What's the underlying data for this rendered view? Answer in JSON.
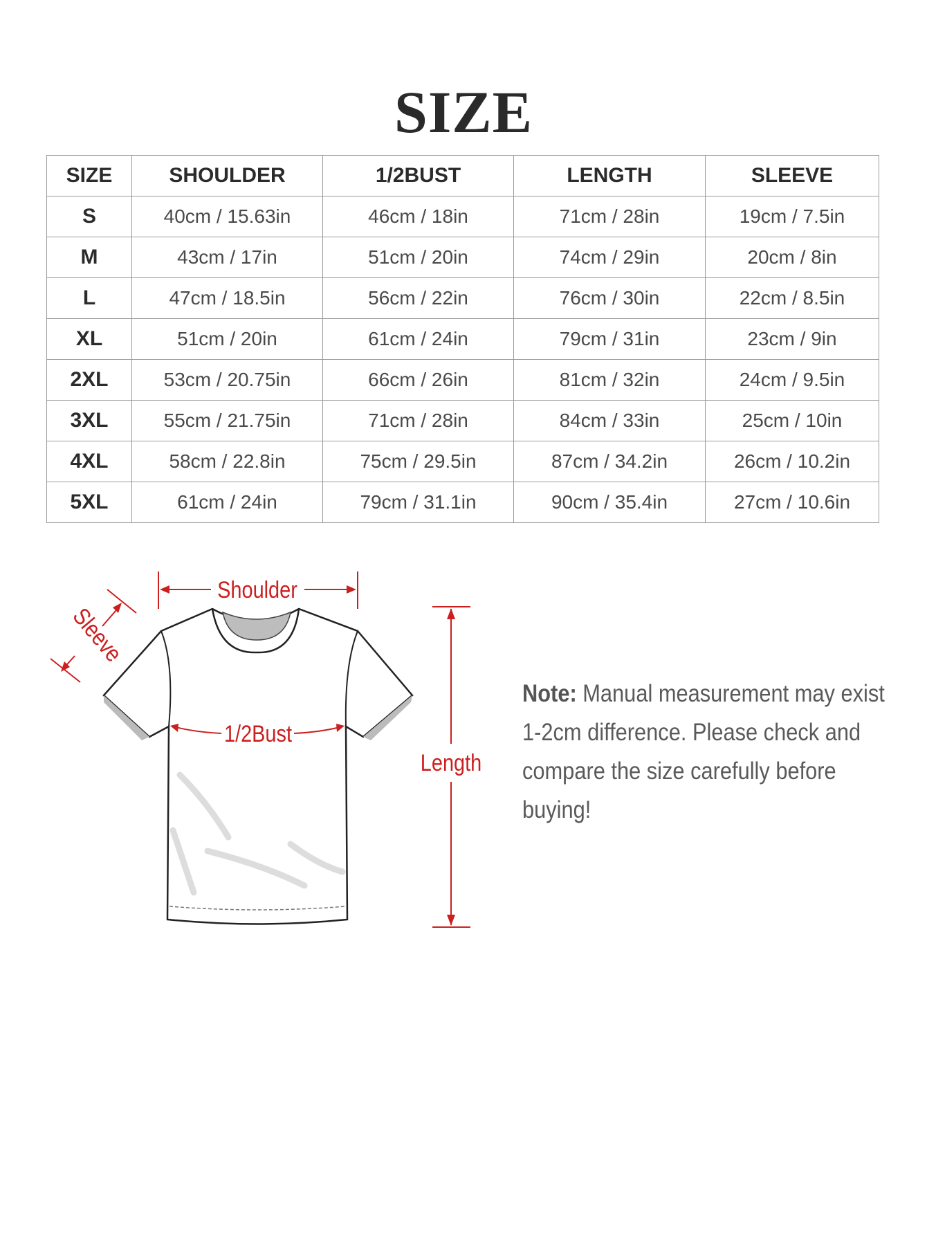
{
  "title": "SIZE",
  "table": {
    "headers": [
      "SIZE",
      "SHOULDER",
      "1/2BUST",
      "LENGTH",
      "SLEEVE"
    ],
    "rows": [
      [
        "S",
        "40cm / 15.63in",
        "46cm / 18in",
        "71cm / 28in",
        "19cm / 7.5in"
      ],
      [
        "M",
        "43cm / 17in",
        "51cm / 20in",
        "74cm / 29in",
        "20cm / 8in"
      ],
      [
        "L",
        "47cm / 18.5in",
        "56cm / 22in",
        "76cm / 30in",
        "22cm / 8.5in"
      ],
      [
        "XL",
        "51cm / 20in",
        "61cm / 24in",
        "79cm / 31in",
        "23cm / 9in"
      ],
      [
        "2XL",
        "53cm / 20.75in",
        "66cm / 26in",
        "81cm / 32in",
        "24cm / 9.5in"
      ],
      [
        "3XL",
        "55cm / 21.75in",
        "71cm / 28in",
        "84cm / 33in",
        "25cm / 10in"
      ],
      [
        "4XL",
        "58cm / 22.8in",
        "75cm / 29.5in",
        "87cm / 34.2in",
        "26cm / 10.2in"
      ],
      [
        "5XL",
        "61cm / 24in",
        "79cm / 31.1in",
        "90cm / 35.4in",
        "27cm / 10.6in"
      ]
    ]
  },
  "diagram": {
    "labels": {
      "shoulder": "Shoulder",
      "sleeve": "Sleeve",
      "bust": "1/2Bust",
      "length": "Length"
    },
    "accent_color": "#cc1f1f"
  },
  "note": {
    "label": "Note:",
    "text": "Manual measurement may exist 1-2cm difference. Please check and compare the size carefully before buying!"
  }
}
